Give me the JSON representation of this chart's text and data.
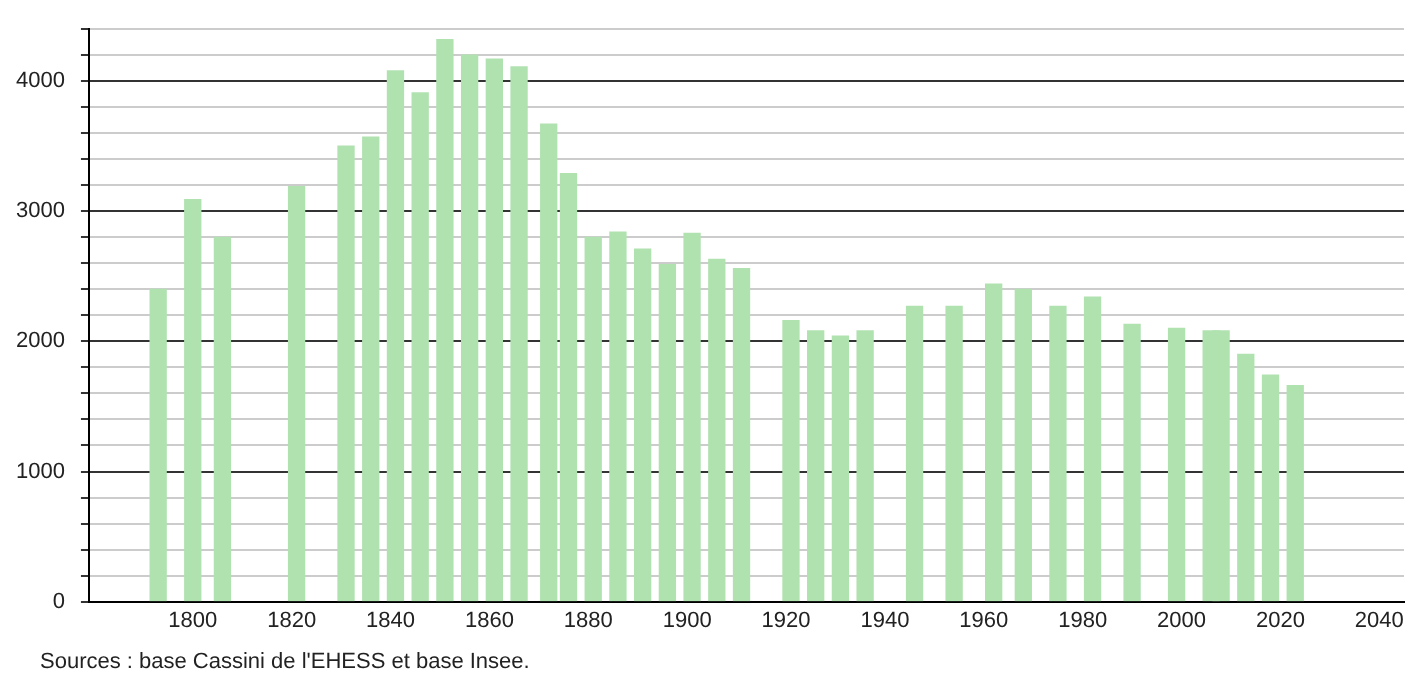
{
  "chart_data": {
    "type": "bar",
    "x": [
      1793,
      1800,
      1806,
      1821,
      1831,
      1836,
      1841,
      1846,
      1851,
      1856,
      1861,
      1866,
      1872,
      1876,
      1881,
      1886,
      1891,
      1896,
      1901,
      1906,
      1911,
      1921,
      1926,
      1931,
      1936,
      1946,
      1954,
      1962,
      1968,
      1975,
      1982,
      1990,
      1999,
      2006,
      2008,
      2013,
      2018,
      2023
    ],
    "values": [
      2400,
      3090,
      2800,
      3190,
      3500,
      3570,
      4080,
      3910,
      4320,
      4200,
      4170,
      4110,
      3670,
      3290,
      2800,
      2840,
      2710,
      2590,
      2830,
      2630,
      2560,
      2160,
      2080,
      2040,
      2080,
      2270,
      2270,
      2440,
      2400,
      2270,
      2340,
      2130,
      2100,
      2080,
      2080,
      1900,
      1740,
      1660
    ],
    "color": "#b0e2b0",
    "xlim": [
      1779,
      2045
    ],
    "xticks": [
      1800,
      1820,
      1840,
      1860,
      1880,
      1900,
      1920,
      1940,
      1960,
      1980,
      2000,
      2020,
      2040
    ],
    "ylim": [
      0,
      4400
    ],
    "yticks": [
      0,
      {
        "value": 200,
        "label": null
      },
      {
        "value": 400,
        "label": null
      },
      {
        "value": 600,
        "label": null
      },
      {
        "value": 800,
        "label": null
      },
      1000,
      {
        "value": 1200,
        "label": null
      },
      {
        "value": 1400,
        "label": null
      },
      {
        "value": 1600,
        "label": null
      },
      {
        "value": 1800,
        "label": null
      },
      2000,
      {
        "value": 2200,
        "label": null
      },
      {
        "value": 2400,
        "label": null
      },
      {
        "value": 2600,
        "label": null
      },
      {
        "value": 2800,
        "label": null
      },
      3000,
      {
        "value": 3200,
        "label": null
      },
      {
        "value": 3400,
        "label": null
      },
      {
        "value": 3600,
        "label": null
      },
      {
        "value": 3800,
        "label": null
      },
      4000,
      {
        "value": 4200,
        "label": null
      },
      {
        "value": 4400,
        "label": null
      }
    ],
    "grid": "y",
    "annotations": [
      "Sources : base Cassini de l'EHESS et base Insee."
    ]
  }
}
